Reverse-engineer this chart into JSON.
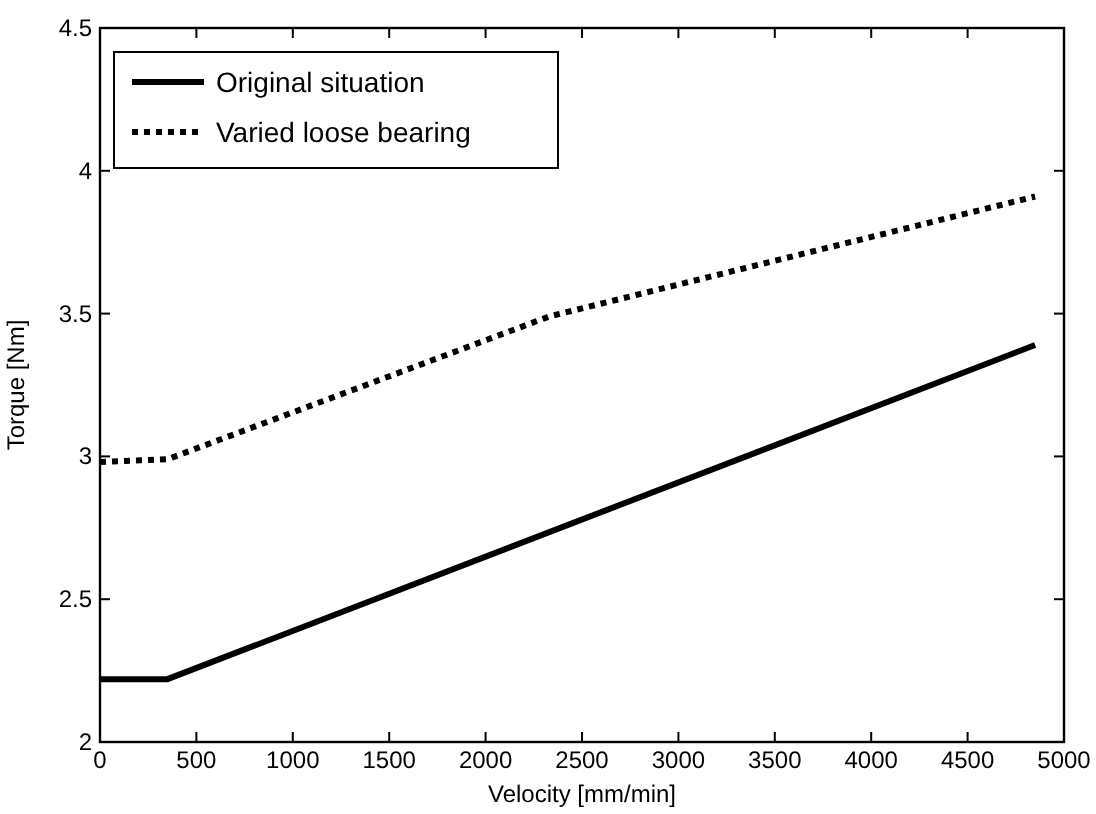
{
  "chart_data": {
    "type": "line",
    "xlabel": "Velocity [mm/min]",
    "ylabel": "Torque [Nm]",
    "xlim": [
      0,
      5000
    ],
    "ylim": [
      2,
      4.5
    ],
    "xticks": [
      0,
      500,
      1000,
      1500,
      2000,
      2500,
      3000,
      3500,
      4000,
      4500,
      5000
    ],
    "yticks": [
      2,
      2.5,
      3,
      3.5,
      4,
      4.5
    ],
    "legend": "top left",
    "grid": false,
    "series": [
      {
        "name": "Original situation",
        "color": "#000000",
        "line_style": "solid",
        "x": [
          0,
          350,
          4850
        ],
        "values": [
          2.22,
          2.22,
          3.39
        ]
      },
      {
        "name": "Varied loose bearing",
        "color": "#000000",
        "line_style": "dotted",
        "x": [
          0,
          350,
          2330,
          4850
        ],
        "values": [
          2.98,
          2.99,
          3.49,
          3.91
        ]
      }
    ]
  }
}
